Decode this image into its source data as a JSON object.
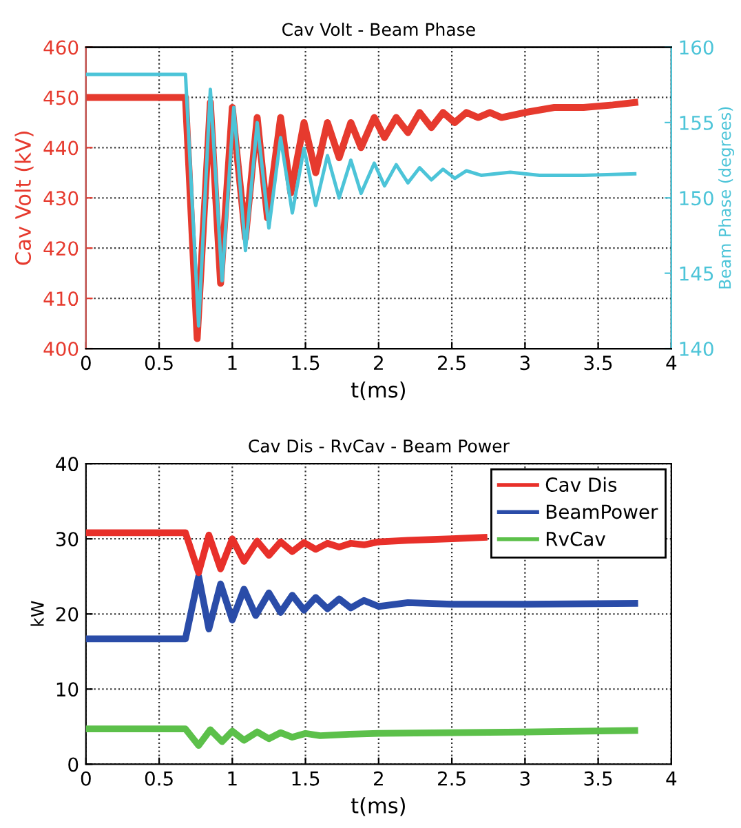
{
  "chart_data": [
    {
      "type": "line",
      "title": "Cav Volt - Beam Phase",
      "xlabel": "t(ms)",
      "ylabel": "Cav Volt (kV)",
      "y2label": "Beam Phase (degrees)",
      "xlim": [
        0,
        4
      ],
      "xticks": [
        0,
        0.5,
        1,
        1.5,
        2,
        2.5,
        3,
        3.5,
        4
      ],
      "ylim": [
        400,
        460
      ],
      "yticks": [
        400,
        410,
        420,
        430,
        440,
        450,
        460
      ],
      "y2lim": [
        140,
        160
      ],
      "y2ticks": [
        140,
        145,
        150,
        155,
        160
      ],
      "grid": true,
      "line_style": "solid",
      "legend": false,
      "series": [
        {
          "color": "#e63a2e",
          "x": [
            0,
            0.68,
            0.76,
            0.85,
            0.92,
            1.0,
            1.09,
            1.17,
            1.24,
            1.33,
            1.4,
            1.49,
            1.57,
            1.65,
            1.73,
            1.81,
            1.88,
            1.97,
            2.04,
            2.12,
            2.2,
            2.28,
            2.36,
            2.44,
            2.52,
            2.6,
            2.68,
            2.76,
            2.84,
            3.0,
            3.2,
            3.4,
            3.6,
            3.75
          ],
          "values": [
            450,
            450,
            402,
            449,
            413,
            448,
            422,
            446,
            426,
            446,
            431,
            445,
            435,
            445,
            438,
            445,
            440,
            446,
            442,
            446,
            443,
            447,
            444,
            447,
            445,
            447,
            446,
            447,
            446,
            447,
            448,
            448,
            448.5,
            449
          ]
        },
        {
          "color": "#4cc4d8",
          "axis": "y2",
          "x": [
            0,
            0.68,
            0.77,
            0.85,
            0.93,
            1.01,
            1.09,
            1.17,
            1.25,
            1.33,
            1.41,
            1.49,
            1.57,
            1.65,
            1.73,
            1.81,
            1.88,
            1.97,
            2.04,
            2.12,
            2.2,
            2.28,
            2.36,
            2.44,
            2.52,
            2.6,
            2.7,
            2.9,
            3.1,
            3.4,
            3.75
          ],
          "values": [
            158.2,
            158.2,
            141.5,
            157.2,
            144.5,
            156,
            146.5,
            155,
            148,
            154,
            149,
            153.3,
            149.5,
            152.8,
            150,
            152.5,
            150.3,
            152.3,
            150.8,
            152.2,
            151,
            152,
            151.2,
            151.9,
            151.3,
            151.8,
            151.5,
            151.7,
            151.5,
            151.5,
            151.6
          ]
        }
      ]
    },
    {
      "type": "line",
      "title": "Cav Dis - RvCav - Beam Power",
      "xlabel": "t(ms)",
      "ylabel": "kW",
      "xlim": [
        0,
        4
      ],
      "xticks": [
        0,
        0.5,
        1,
        1.5,
        2,
        2.5,
        3,
        3.5,
        4
      ],
      "ylim": [
        0,
        40
      ],
      "yticks": [
        0,
        10,
        20,
        30,
        40
      ],
      "grid": true,
      "line_style": "solid",
      "legend": "top right",
      "series": [
        {
          "name": "Cav Dis",
          "color": "#e8302a",
          "x": [
            0,
            0.68,
            0.77,
            0.84,
            0.92,
            1.0,
            1.08,
            1.17,
            1.25,
            1.33,
            1.41,
            1.49,
            1.57,
            1.65,
            1.73,
            1.81,
            1.9,
            2.0,
            2.2,
            2.5,
            2.72
          ],
          "values": [
            30.8,
            30.8,
            25.5,
            30.5,
            26,
            30,
            27,
            29.7,
            27.8,
            29.6,
            28.3,
            29.5,
            28.6,
            29.4,
            28.9,
            29.4,
            29.2,
            29.6,
            29.8,
            30,
            30.2
          ]
        },
        {
          "name": "BeamPower",
          "color": "#2a4ca8",
          "x": [
            0,
            0.68,
            0.77,
            0.84,
            0.92,
            1.0,
            1.08,
            1.16,
            1.25,
            1.33,
            1.41,
            1.49,
            1.57,
            1.65,
            1.73,
            1.81,
            1.9,
            2.0,
            2.2,
            2.5,
            3.0,
            3.75
          ],
          "values": [
            16.7,
            16.7,
            25,
            18,
            24,
            19.2,
            23.3,
            19.8,
            22.8,
            20.2,
            22.5,
            20.5,
            22.2,
            20.7,
            22,
            20.8,
            21.8,
            21,
            21.5,
            21.3,
            21.3,
            21.4
          ]
        },
        {
          "name": "RvCav",
          "color": "#5cc04a",
          "x": [
            0,
            0.68,
            0.77,
            0.85,
            0.93,
            1.0,
            1.08,
            1.17,
            1.25,
            1.33,
            1.41,
            1.5,
            1.6,
            1.8,
            2.0,
            2.5,
            3.0,
            3.75
          ],
          "values": [
            4.7,
            4.7,
            2.5,
            4.6,
            3,
            4.4,
            3.2,
            4.3,
            3.4,
            4.2,
            3.6,
            4.1,
            3.8,
            4.0,
            4.1,
            4.2,
            4.3,
            4.5
          ]
        }
      ]
    }
  ]
}
